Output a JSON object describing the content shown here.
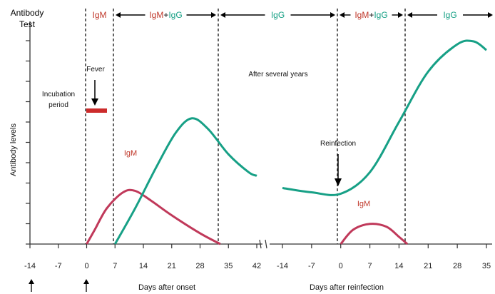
{
  "chart_data": {
    "type": "line",
    "ylabel": "Antibody levels",
    "header": {
      "label": "Antibody Test",
      "segments": [
        {
          "text": "IgM",
          "color": "#c0392b"
        },
        {
          "text": "IgM",
          "color": "#c0392b",
          "plus": "IgG",
          "color2": "#16a085"
        },
        {
          "text": "IgG",
          "color": "#16a085"
        },
        {
          "text": "IgM",
          "color": "#c0392b",
          "plus": "IgG",
          "color2": "#16a085"
        },
        {
          "text": "IgG",
          "color": "#16a085"
        }
      ]
    },
    "annotations": {
      "fever": "Fever",
      "incubation": [
        "Incubation",
        "period"
      ],
      "after_years": "After several years",
      "reinfection": "Reinfection",
      "igm_label_1": "IgM",
      "igm_label_2": "IgM"
    },
    "x_axes": [
      {
        "label": "Days after onset",
        "ticks": [
          "-14",
          "-7",
          "0",
          "7",
          "14",
          "21",
          "28",
          "35",
          "42"
        ]
      },
      {
        "label": "Days after reinfection",
        "ticks": [
          "-14",
          "-7",
          "0",
          "7",
          "14",
          "21",
          "28",
          "35"
        ]
      }
    ],
    "series": [
      {
        "name": "IgM",
        "color": "#c0395a",
        "x_primary": [
          0,
          2,
          5,
          9,
          12,
          16,
          21,
          28,
          33
        ],
        "y_primary": [
          0,
          20,
          50,
          72,
          74,
          60,
          40,
          15,
          0
        ],
        "x_reinfection": [
          0,
          3,
          7,
          11,
          14,
          16
        ],
        "y_reinfection": [
          0,
          20,
          28,
          24,
          10,
          0
        ]
      },
      {
        "name": "IgG",
        "color": "#17a086",
        "x_primary": [
          7,
          12,
          17,
          22,
          26,
          30,
          35,
          40,
          42
        ],
        "y_primary": [
          0,
          50,
          105,
          155,
          175,
          160,
          125,
          100,
          95
        ],
        "x_reinfection": [
          -14,
          -7,
          0,
          7,
          14,
          21,
          28,
          32,
          35
        ],
        "y_reinfection": [
          78,
          72,
          70,
          100,
          170,
          240,
          278,
          282,
          270
        ]
      }
    ],
    "ylim": [
      0,
      300
    ],
    "grid": false,
    "markers": {
      "incubation_bar_color": "#cc2b2b"
    }
  }
}
